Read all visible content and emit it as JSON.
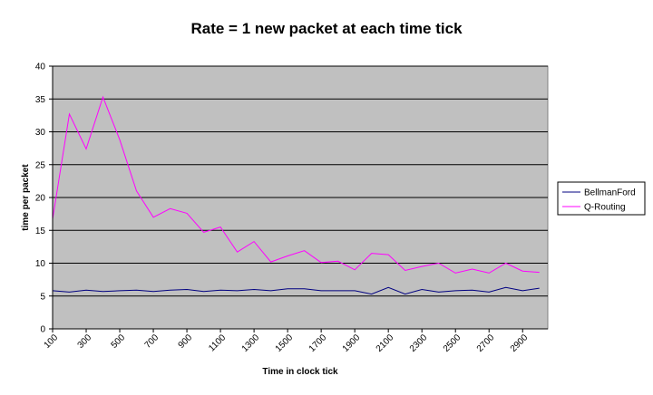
{
  "chart_data": {
    "type": "line",
    "title": "Rate = 1 new packet at each time tick",
    "xlabel": "Time in clock tick",
    "ylabel": "time per packet",
    "ylim": [
      0,
      40
    ],
    "yticks": [
      0,
      5,
      10,
      15,
      20,
      25,
      30,
      35,
      40
    ],
    "xlim": [
      100,
      3050
    ],
    "xtick_labels": [
      "100",
      "300",
      "500",
      "700",
      "900",
      "1100",
      "1300",
      "1500",
      "1700",
      "1900",
      "2100",
      "2300",
      "2500",
      "2700",
      "2900"
    ],
    "grid": true,
    "legend_position": "right",
    "background_color": "#c0c0c0",
    "x": [
      100,
      200,
      300,
      400,
      500,
      600,
      700,
      800,
      900,
      1000,
      1100,
      1200,
      1300,
      1400,
      1500,
      1600,
      1700,
      1800,
      1900,
      2000,
      2100,
      2200,
      2300,
      2400,
      2500,
      2600,
      2700,
      2800,
      2900,
      3000
    ],
    "series": [
      {
        "name": "BellmanFord",
        "color": "#000080",
        "values": [
          5.8,
          5.6,
          5.9,
          5.7,
          5.8,
          5.9,
          5.7,
          5.9,
          6.0,
          5.7,
          5.9,
          5.8,
          6.0,
          5.8,
          6.1,
          6.1,
          5.8,
          5.8,
          5.8,
          5.3,
          6.3,
          5.3,
          6.0,
          5.6,
          5.8,
          5.9,
          5.6,
          6.3,
          5.8,
          6.2
        ]
      },
      {
        "name": "Q-Routing",
        "color": "#ff00ff",
        "values": [
          16.7,
          32.7,
          27.4,
          35.3,
          28.8,
          21.0,
          17.0,
          18.3,
          17.6,
          14.7,
          15.5,
          11.7,
          13.3,
          10.2,
          11.1,
          11.9,
          10.1,
          10.3,
          9.0,
          11.5,
          11.3,
          8.9,
          9.5,
          10.0,
          8.5,
          9.1,
          8.5,
          10.0,
          8.8,
          8.6
        ]
      }
    ]
  }
}
